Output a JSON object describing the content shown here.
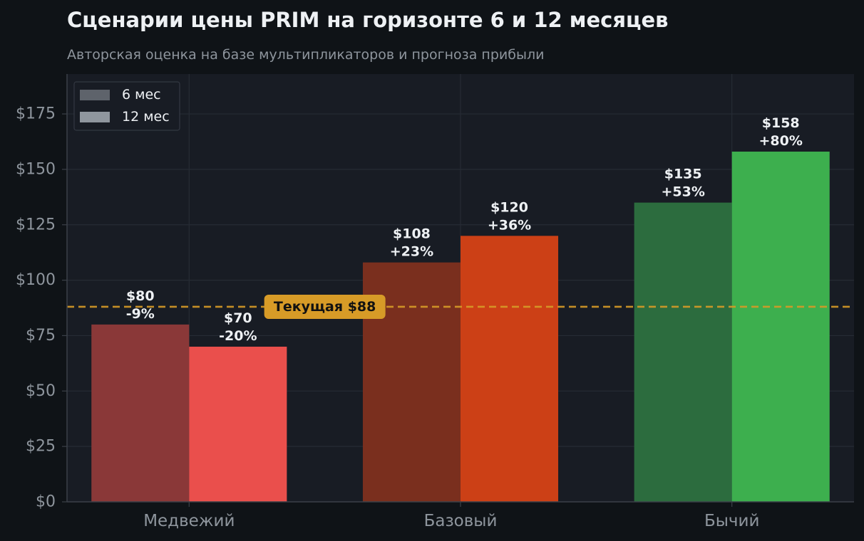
{
  "chart_data": {
    "type": "bar",
    "title": "Сценарии цены PRIM на горизонте 6 и 12 месяцев",
    "subtitle": "Авторская оценка на базе мультипликаторов и прогноза прибыли",
    "xlabel": "",
    "ylabel": "",
    "categories": [
      "Медвежий",
      "Базовый",
      "Бычий"
    ],
    "series": [
      {
        "name": "6 мес",
        "values": [
          80,
          108,
          135
        ],
        "value_labels": [
          "$80",
          "$108",
          "$135"
        ],
        "pct_labels": [
          "-9%",
          "+23%",
          "+53%"
        ],
        "colors": [
          "#8a3838",
          "#7a2f1e",
          "#2c6c3e"
        ]
      },
      {
        "name": "12 мес",
        "values": [
          70,
          120,
          158
        ],
        "value_labels": [
          "$70",
          "$120",
          "$158"
        ],
        "pct_labels": [
          "-20%",
          "+36%",
          "+80%"
        ],
        "colors": [
          "#ea4f4c",
          "#cc4016",
          "#3daf4e"
        ]
      }
    ],
    "legend": {
      "placement": "top-left",
      "swatch_colors": [
        "#5e636b",
        "#8f969e"
      ]
    },
    "reference_line": {
      "value": 88,
      "label": "Текущая $88",
      "color": "#d79b27"
    },
    "ylim": [
      0,
      193
    ],
    "yticks": [
      0,
      25,
      50,
      75,
      100,
      125,
      150,
      175
    ],
    "ytick_labels": [
      "$0",
      "$25",
      "$50",
      "$75",
      "$100",
      "$125",
      "$150",
      "$175"
    ],
    "grid": true,
    "colors": {
      "background": "#0f1317",
      "plot_background": "#181c24",
      "grid": "#262b34",
      "axis": "#3b4048",
      "text": "#eef1f4",
      "muted_text": "#8e959d"
    }
  }
}
